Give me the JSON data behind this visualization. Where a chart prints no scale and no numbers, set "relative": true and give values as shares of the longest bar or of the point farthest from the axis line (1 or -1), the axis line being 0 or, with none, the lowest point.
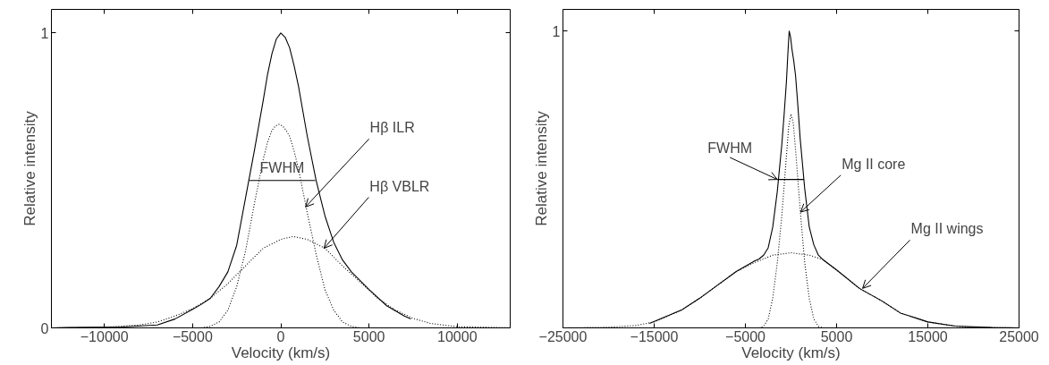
{
  "chart_data": [
    {
      "type": "line",
      "xlabel": "Velocity (km/s)",
      "ylabel": "Relative intensity",
      "xlim": [
        -13000,
        13000
      ],
      "ylim": [
        0,
        1.08
      ],
      "xticks": [
        {
          "value": -10000,
          "label": "−10000"
        },
        {
          "value": -5000,
          "label": "−5000"
        },
        0,
        5000,
        10000
      ],
      "yticks": [
        0,
        1
      ],
      "grid": false,
      "series": [
        {
          "color": "#000000",
          "line_style": "solid",
          "x": [
            -13000,
            -12000,
            -9000,
            -7000,
            -6000,
            -5000,
            -4500,
            -4000,
            -3500,
            -3000,
            -2500,
            -2000,
            -1500,
            -1000,
            -750,
            -500,
            -250,
            0,
            250,
            500,
            750,
            1000,
            1500,
            2000,
            2500,
            3000,
            3500,
            4000,
            5000,
            6000,
            7000,
            7370
          ],
          "values": [
            0,
            0.001,
            0.003,
            0.01,
            0.03,
            0.063,
            0.08,
            0.1,
            0.14,
            0.19,
            0.28,
            0.44,
            0.6,
            0.77,
            0.86,
            0.93,
            0.98,
            1,
            0.985,
            0.95,
            0.89,
            0.82,
            0.65,
            0.5,
            0.38,
            0.29,
            0.23,
            0.19,
            0.13,
            0.075,
            0.04,
            0.03
          ]
        },
        {
          "color": "#000000",
          "line_style": "dotted",
          "x": [
            -4500,
            -4000,
            -3500,
            -3000,
            -2500,
            -2000,
            -1500,
            -1000,
            -750,
            -500,
            -300,
            -100,
            100,
            300,
            500,
            750,
            1000,
            1500,
            2000,
            2500,
            3000,
            3500,
            4000,
            4500
          ],
          "values": [
            0,
            0.005,
            0.02,
            0.06,
            0.14,
            0.26,
            0.42,
            0.57,
            0.63,
            0.67,
            0.685,
            0.69,
            0.685,
            0.67,
            0.65,
            0.6,
            0.54,
            0.39,
            0.25,
            0.13,
            0.06,
            0.02,
            0.005,
            0
          ]
        },
        {
          "color": "#000000",
          "line_style": "dotted",
          "x": [
            -13000,
            -10000,
            -8000,
            -7000,
            -6000,
            -5000,
            -4000,
            -3000,
            -2000,
            -1000,
            0,
            700,
            1500,
            2500,
            3500,
            4500,
            5500,
            6500,
            7500,
            8500,
            10000,
            13000
          ],
          "values": [
            0,
            0.002,
            0.01,
            0.02,
            0.04,
            0.065,
            0.1,
            0.15,
            0.21,
            0.27,
            0.3,
            0.31,
            0.3,
            0.27,
            0.21,
            0.155,
            0.1,
            0.06,
            0.032,
            0.015,
            0.004,
            0
          ]
        },
        {
          "color": "#000000",
          "line_style": "solid",
          "x": [
            -1800,
            1950
          ],
          "values": [
            0.5,
            0.5
          ]
        }
      ],
      "annotations": [
        {
          "text": "FWHM",
          "x": 75,
          "y": 0.5
        },
        {
          "text": "Hβ ILR",
          "x": 1400,
          "y": 0.41
        },
        {
          "text": "Hβ VBLR",
          "x": 2450,
          "y": 0.27
        }
      ]
    },
    {
      "type": "line",
      "relative": true,
      "xlabel": "Velocity (km/s)",
      "ylabel": "Relative intensity",
      "xlim": [
        -25000,
        25000
      ],
      "xticks": [
        {
          "value": -25000,
          "label": "−25000"
        },
        {
          "value": -15000,
          "label": "−15000"
        },
        {
          "value": -5000,
          "label": "−5000"
        },
        5000,
        15000,
        25000
      ],
      "grid": false,
      "series": [
        {
          "color": "#000000",
          "line_style": "solid",
          "x": [
            -15500,
            -12000,
            -10000,
            -8000,
            -6000,
            -4000,
            -3500,
            -3000,
            -2500,
            -2000,
            -1500,
            -1000,
            -750,
            -500,
            -350,
            -200,
            -50,
            100,
            300,
            500,
            750,
            1000,
            1500,
            2000,
            2500,
            3000,
            3500,
            5000,
            7500,
            10000,
            12000,
            15000,
            18000,
            22000,
            25000
          ],
          "values": [
            0.015,
            0.06,
            0.1,
            0.145,
            0.19,
            0.225,
            0.232,
            0.245,
            0.27,
            0.34,
            0.46,
            0.62,
            0.72,
            0.83,
            0.92,
            1,
            0.98,
            0.94,
            0.9,
            0.85,
            0.75,
            0.64,
            0.47,
            0.34,
            0.28,
            0.245,
            0.23,
            0.195,
            0.133,
            0.09,
            0.05,
            0.02,
            0.006,
            0.001,
            0
          ]
        },
        {
          "color": "#000000",
          "line_style": "dotted",
          "x": [
            -3500,
            -3000,
            -2500,
            -2000,
            -1500,
            -1000,
            -500,
            -250,
            0,
            250,
            500,
            1000,
            1500,
            2000,
            2500,
            3000,
            3500
          ],
          "values": [
            0,
            0.005,
            0.03,
            0.1,
            0.22,
            0.38,
            0.58,
            0.68,
            0.72,
            0.69,
            0.6,
            0.4,
            0.22,
            0.1,
            0.03,
            0.005,
            0
          ]
        },
        {
          "color": "#000000",
          "line_style": "dotted",
          "x": [
            -25000,
            -20000,
            -17000,
            -15000,
            -12000,
            -10000,
            -8000,
            -6000,
            -4000,
            -2000,
            0,
            2000,
            3500,
            5000,
            7500,
            10000,
            12000,
            15000,
            18000,
            20000,
            25000
          ],
          "values": [
            0,
            0.002,
            0.008,
            0.02,
            0.06,
            0.1,
            0.145,
            0.19,
            0.22,
            0.245,
            0.253,
            0.245,
            0.23,
            0.195,
            0.133,
            0.09,
            0.05,
            0.02,
            0.006,
            0.002,
            0
          ]
        },
        {
          "color": "#000000",
          "line_style": "solid",
          "x": [
            -1500,
            1430
          ],
          "values": [
            0.5,
            0.5
          ]
        }
      ],
      "annotations": [
        "1",
        {
          "text": "FWHM",
          "x": -1500,
          "y": 0.5
        },
        {
          "text": "Mg II core",
          "x": 1050,
          "y": 0.39
        },
        {
          "text": "Mg II wings",
          "x": 7850,
          "y": 0.133
        }
      ]
    }
  ]
}
